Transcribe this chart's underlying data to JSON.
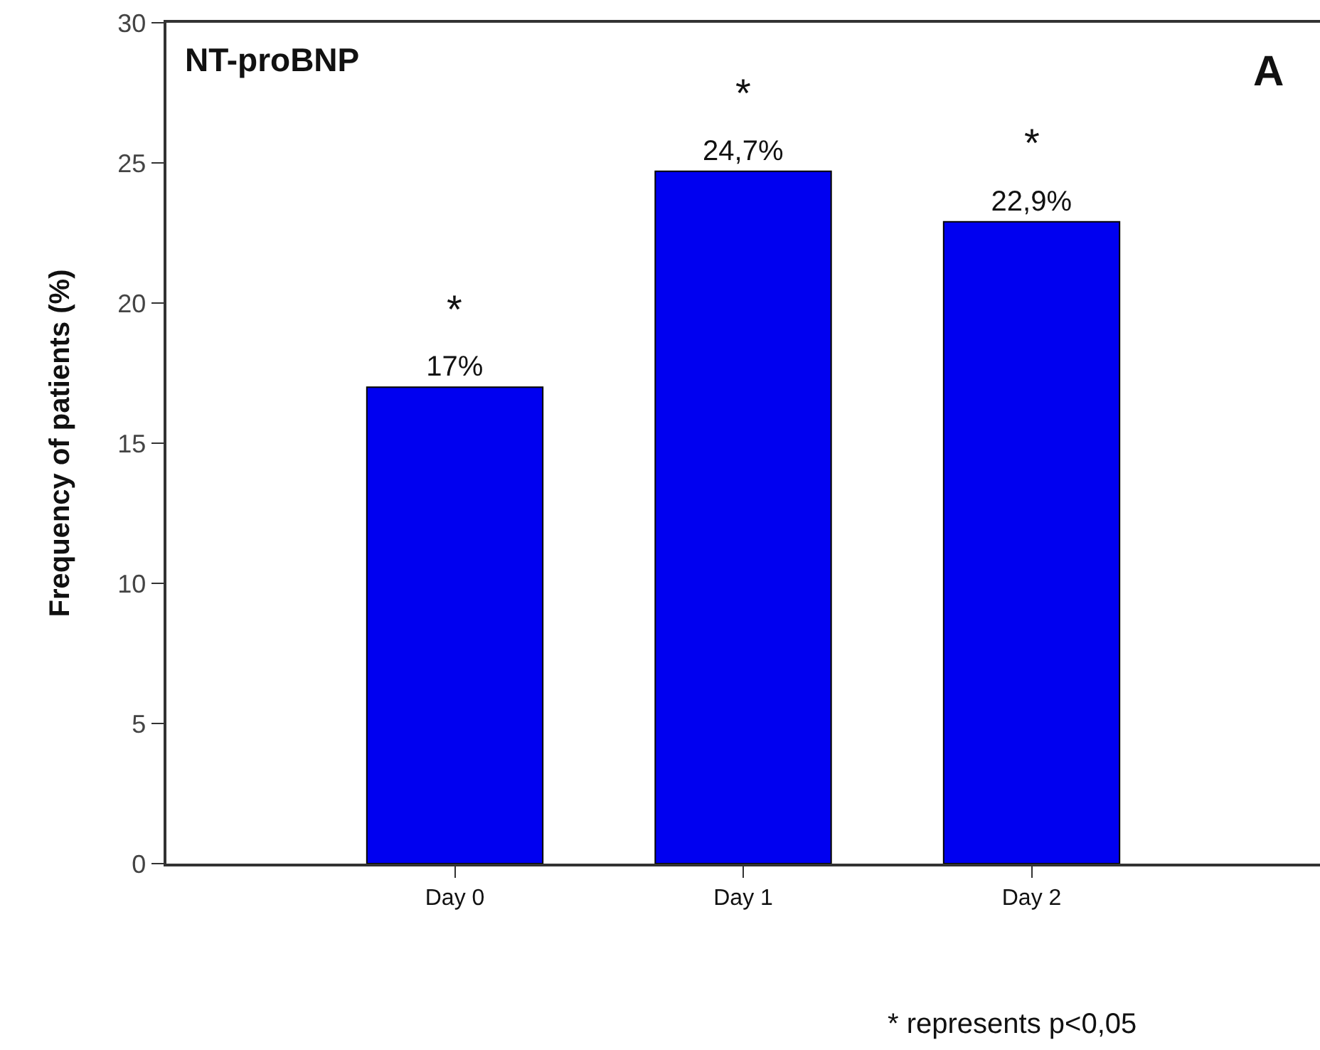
{
  "chart_data": {
    "type": "bar",
    "title": "NT-proBNP",
    "ylabel": "Frequency of patients (%)",
    "categories": [
      "Day 0",
      "Day 1",
      "Day 2"
    ],
    "values": [
      17,
      24.7,
      22.9
    ],
    "value_labels": [
      "17%",
      "24,7%",
      "22,9%"
    ],
    "color": "#0000f0",
    "ylim": [
      0,
      30
    ],
    "yticks": [
      0,
      5,
      10,
      15,
      20,
      25,
      30
    ],
    "annotations": [
      {
        "text": "*",
        "x": "Day 0",
        "y": 17
      },
      {
        "text": "*",
        "x": "Day 1",
        "y": 24.7
      },
      {
        "text": "*",
        "x": "Day 2",
        "y": 22.9
      },
      "A",
      "* represents p<0,05"
    ]
  }
}
